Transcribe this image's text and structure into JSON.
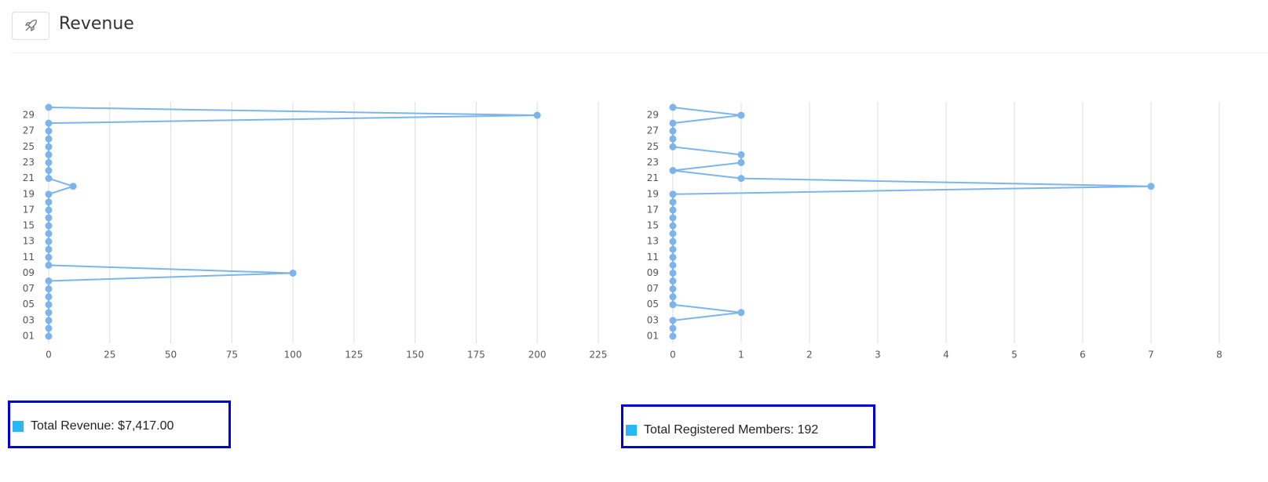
{
  "header": {
    "title": "Revenue"
  },
  "chart_data": [
    {
      "type": "line",
      "orientation": "horizontal",
      "color": "#7cb5ec",
      "grid": true,
      "categories": [
        "01",
        null,
        "03",
        null,
        "05",
        null,
        "07",
        null,
        "09",
        null,
        "11",
        null,
        "13",
        null,
        "15",
        null,
        "17",
        null,
        "19",
        null,
        "21",
        null,
        "23",
        null,
        "25",
        null,
        "27",
        null,
        "29",
        null
      ],
      "values": [
        0,
        0,
        0,
        0,
        0,
        0,
        0,
        0,
        100,
        0,
        0,
        0,
        0,
        0,
        0,
        0,
        0,
        0,
        0,
        10,
        0,
        0,
        0,
        0,
        0,
        0,
        0,
        0,
        200,
        0
      ],
      "xlim": [
        0,
        225
      ],
      "xticks": [
        0,
        25,
        50,
        75,
        100,
        125,
        150,
        175,
        200,
        225
      ],
      "summary": {
        "text": "Total Revenue: $7,417.00",
        "color": "#29b6f6"
      }
    },
    {
      "type": "line",
      "orientation": "horizontal",
      "color": "#7cb5ec",
      "grid": true,
      "categories": [
        "01",
        null,
        "03",
        null,
        "05",
        null,
        "07",
        null,
        "09",
        null,
        "11",
        null,
        "13",
        null,
        "15",
        null,
        "17",
        null,
        "19",
        null,
        "21",
        null,
        "23",
        null,
        "25",
        null,
        "27",
        null,
        "29",
        null
      ],
      "values": [
        0,
        0,
        0,
        1,
        0,
        0,
        0,
        0,
        0,
        0,
        0,
        0,
        0,
        0,
        0,
        0,
        0,
        0,
        0,
        7,
        1,
        0,
        1,
        1,
        0,
        0,
        0,
        0,
        1,
        0
      ],
      "xlim": [
        0,
        8
      ],
      "xticks": [
        0,
        1,
        2,
        3,
        4,
        5,
        6,
        7,
        8
      ],
      "summary": {
        "text": "Total Registered Members: 192",
        "color": "#29b6f6"
      }
    }
  ]
}
